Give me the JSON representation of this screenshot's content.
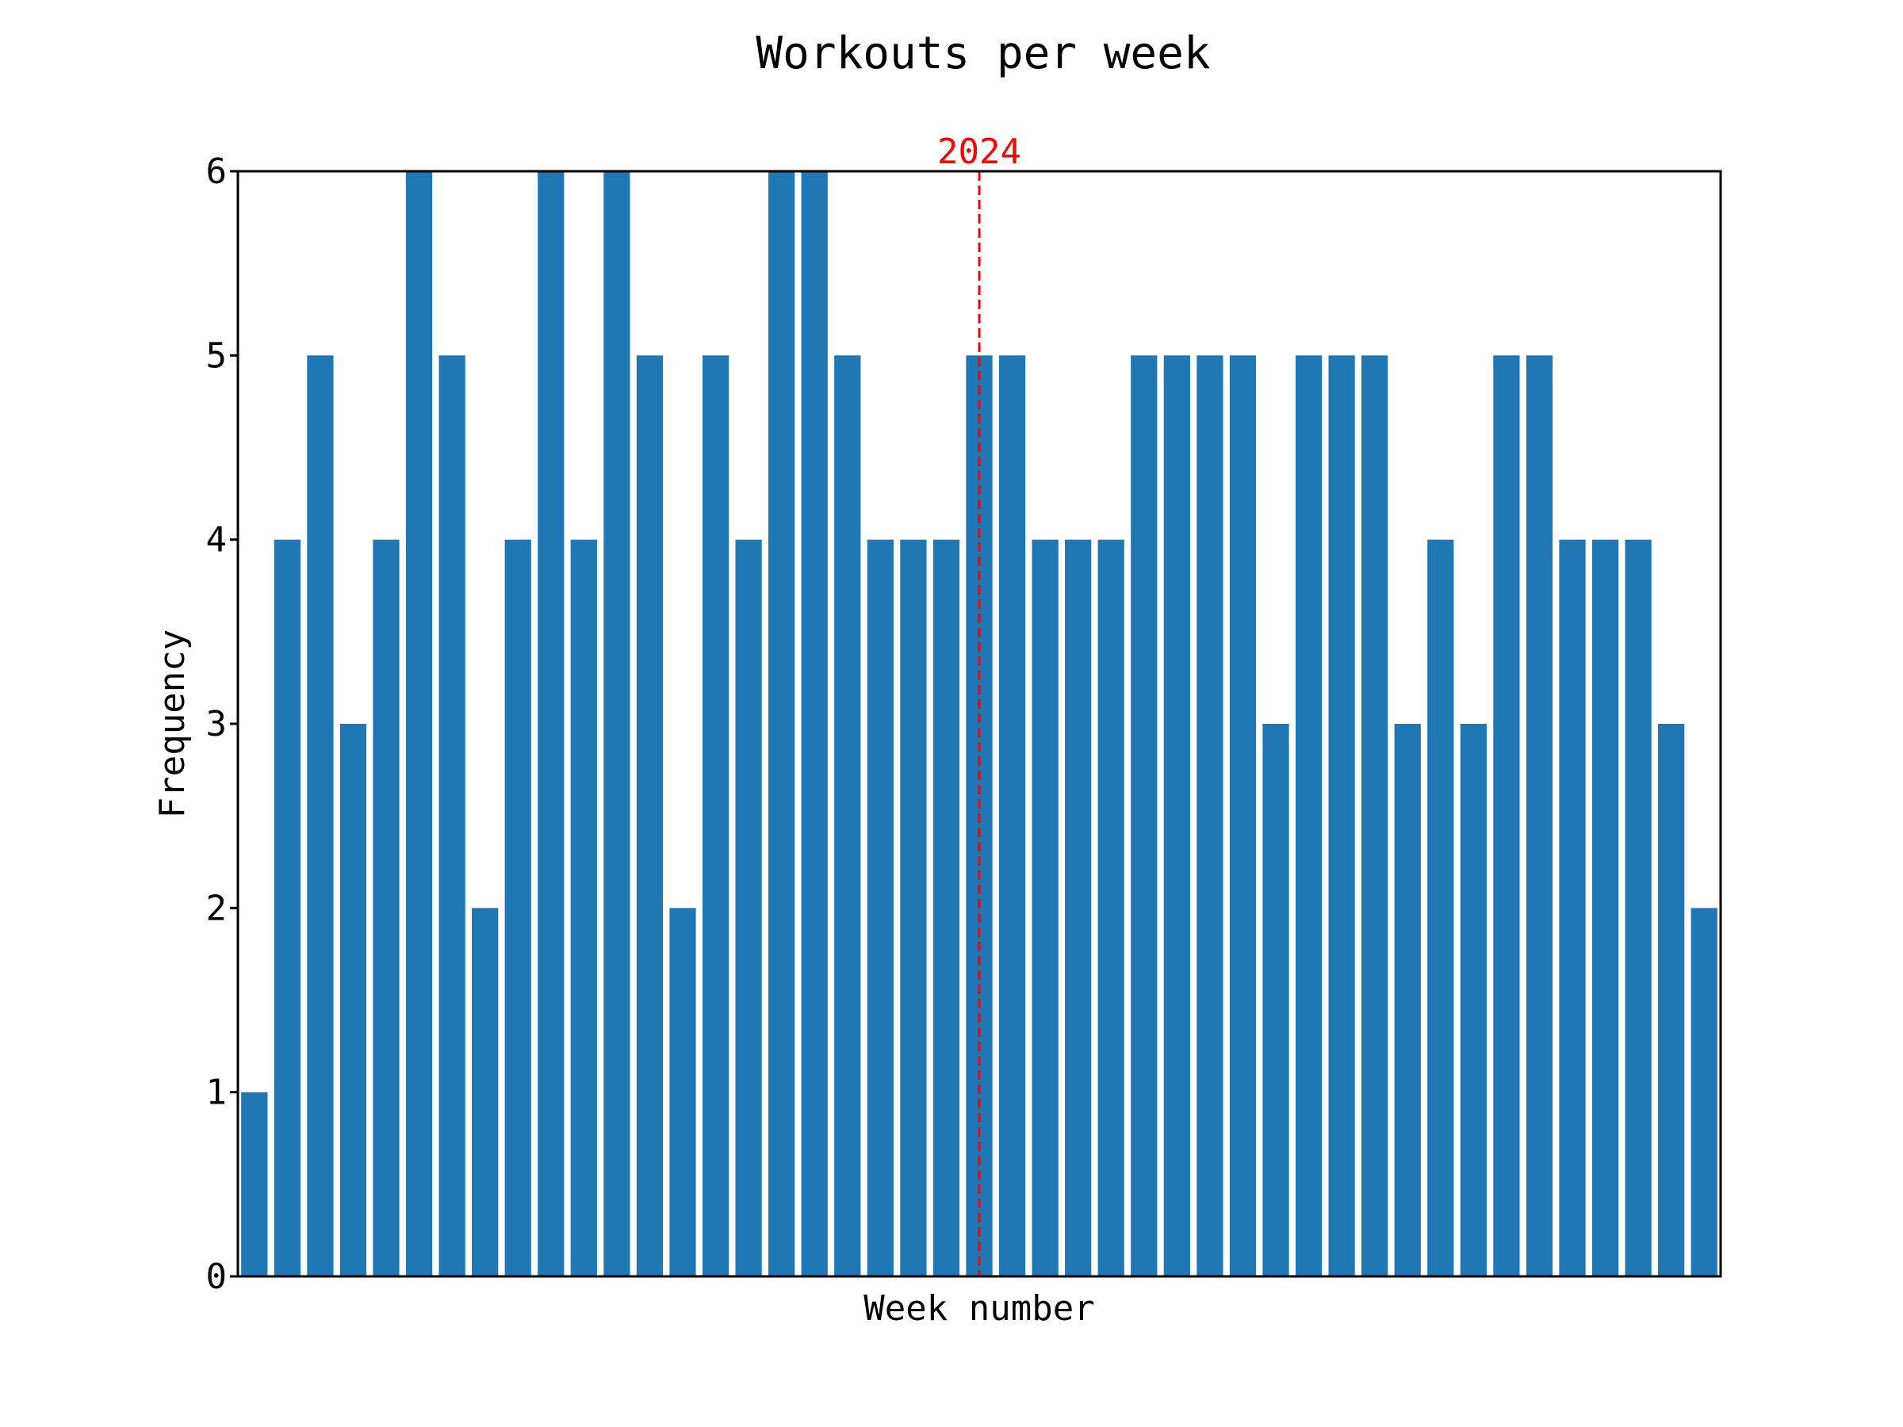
{
  "chart_data": {
    "type": "bar",
    "title": "Workouts per week",
    "xlabel": "Week number",
    "ylabel": "Frequency",
    "ylim": [
      0,
      6
    ],
    "y_ticks": [
      "0",
      "1",
      "2",
      "3",
      "4",
      "5",
      "6"
    ],
    "x_ticks_shown": false,
    "grid": false,
    "bar_color": "#1f77b4",
    "values": [
      1,
      4,
      5,
      3,
      4,
      6,
      5,
      2,
      4,
      6,
      4,
      6,
      5,
      2,
      5,
      4,
      6,
      6,
      5,
      4,
      4,
      4,
      5,
      5,
      4,
      4,
      4,
      5,
      5,
      5,
      5,
      3,
      5,
      5,
      5,
      3,
      4,
      3,
      5,
      5,
      4,
      4,
      4,
      3,
      2
    ],
    "annotations": [
      {
        "type": "vertical-dashed-line",
        "label": "2024",
        "color": "#ff0000",
        "at_bar_index": 22
      }
    ]
  }
}
